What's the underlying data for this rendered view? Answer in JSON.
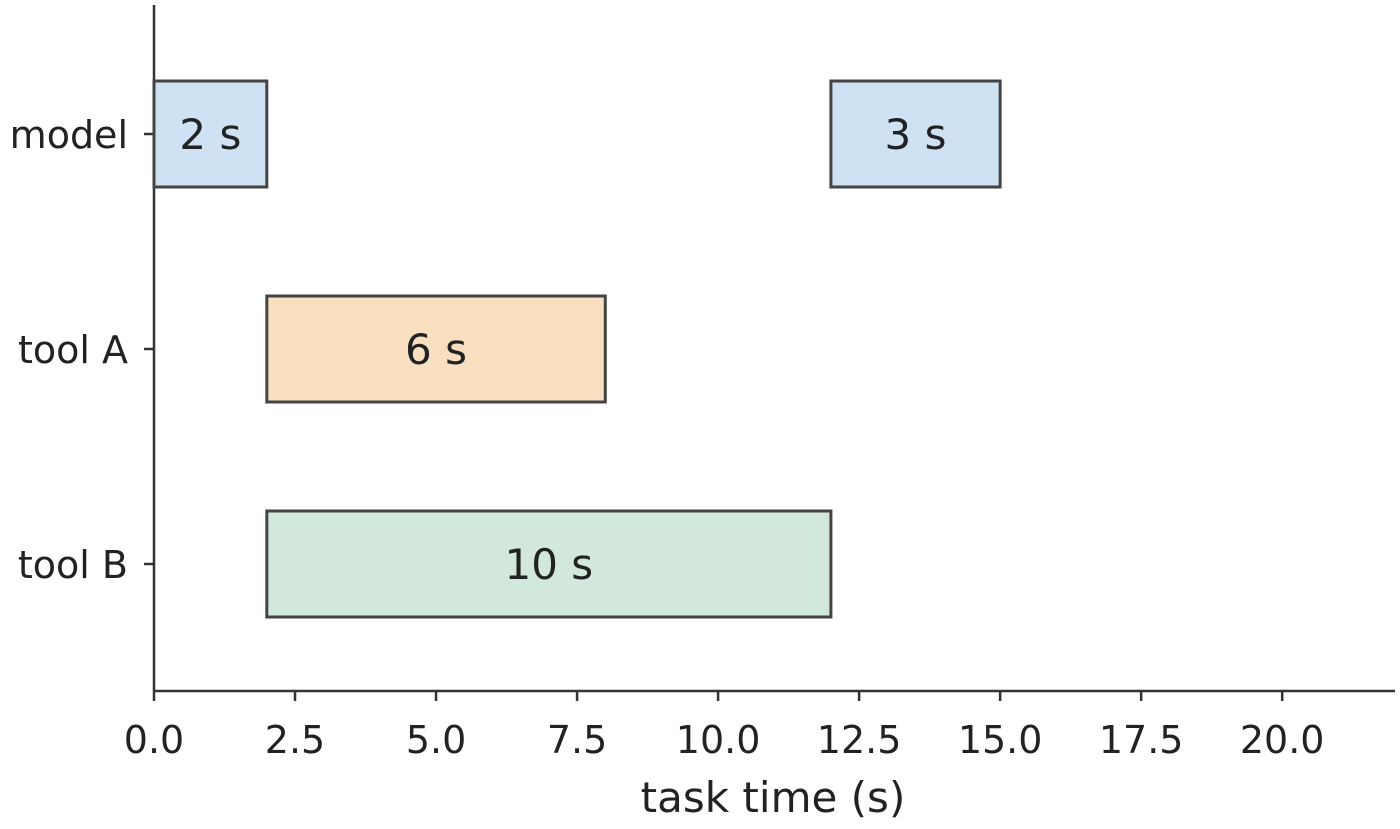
{
  "chart_data": {
    "type": "bar",
    "orientation": "horizontal-timeline",
    "title": "",
    "xlabel": "task time (s)",
    "ylabel": "",
    "xlim": [
      0,
      22
    ],
    "x_ticks": [
      "0.0",
      "2.5",
      "5.0",
      "7.5",
      "10.0",
      "12.5",
      "15.0",
      "17.5",
      "20.0"
    ],
    "x_tick_values": [
      0,
      2.5,
      5,
      7.5,
      10,
      12.5,
      15,
      17.5,
      20
    ],
    "categories": [
      "model",
      "tool A",
      "tool B"
    ],
    "grid": false,
    "legend": "none",
    "segments": [
      {
        "category": "model",
        "start": 0,
        "end": 2,
        "label": "2 s",
        "color": "#cfe2f3"
      },
      {
        "category": "model",
        "start": 12,
        "end": 15,
        "label": "3 s",
        "color": "#cfe2f3"
      },
      {
        "category": "tool A",
        "start": 2,
        "end": 8,
        "label": "6 s",
        "color": "#f8dfc0"
      },
      {
        "category": "tool B",
        "start": 2,
        "end": 12,
        "label": "10 s",
        "color": "#d2e8dc"
      }
    ]
  }
}
